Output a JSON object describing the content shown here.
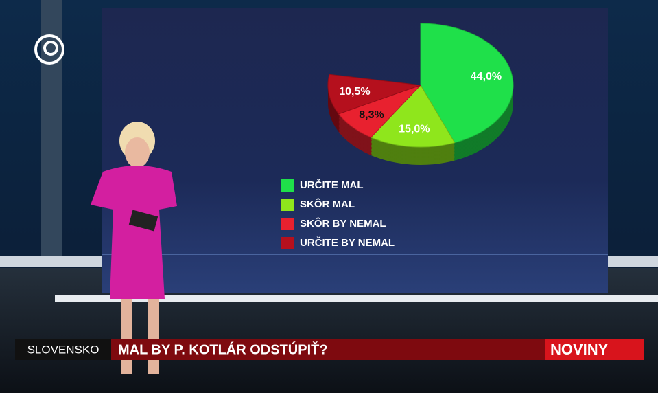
{
  "chart_data": {
    "type": "pie",
    "categories": [
      "URČITE MAL",
      "SKÔR MAL",
      "SKÔR BY NEMAL",
      "URČITE BY NEMAL"
    ],
    "values": [
      44.0,
      15.0,
      8.3,
      10.5
    ],
    "value_labels": [
      "44,0%",
      "15,0%",
      "8,3%",
      "10,5%"
    ],
    "colors": [
      "#1fe04a",
      "#8fe61c",
      "#e8212f",
      "#b5101d"
    ]
  },
  "lower_third": {
    "section": "SLOVENSKO",
    "headline": "MAL BY P. KOTLÁR ODSTÚPIŤ?",
    "logo": "NOVINY"
  }
}
